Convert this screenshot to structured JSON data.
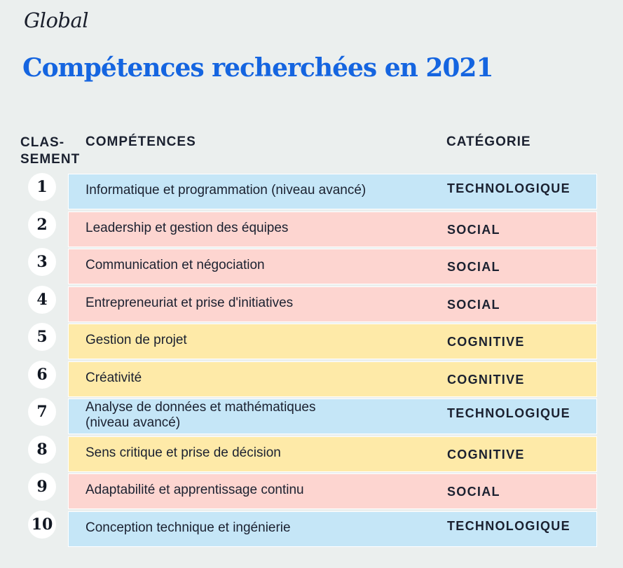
{
  "header": {
    "kicker": "Global",
    "title": "Compétences recherchées en 2021"
  },
  "columns": {
    "rank": "CLAS-\nSEMENT",
    "skill": "COMPÉTENCES",
    "category": "CATÉGORIE"
  },
  "colors": {
    "TECHNOLOGIQUE": "#c5e6f7",
    "SOCIAL": "#fdd5d0",
    "COGNITIVE": "#feeaa8",
    "title": "#1565e0",
    "background": "#ebefee"
  },
  "rows": [
    {
      "rank": "1",
      "skill": "Informatique et programmation (niveau avancé)",
      "category": "TECHNOLOGIQUE"
    },
    {
      "rank": "2",
      "skill": "Leadership et gestion des équipes",
      "category": "SOCIAL"
    },
    {
      "rank": "3",
      "skill": "Communication et négociation",
      "category": "SOCIAL"
    },
    {
      "rank": "4",
      "skill": "Entrepreneuriat et prise d'initiatives",
      "category": "SOCIAL"
    },
    {
      "rank": "5",
      "skill": "Gestion de projet",
      "category": "COGNITIVE"
    },
    {
      "rank": "6",
      "skill": "Créativité",
      "category": "COGNITIVE"
    },
    {
      "rank": "7",
      "skill": "Analyse de données et mathématiques\n(niveau avancé)",
      "category": "TECHNOLOGIQUE"
    },
    {
      "rank": "8",
      "skill": "Sens critique et prise de décision",
      "category": "COGNITIVE"
    },
    {
      "rank": "9",
      "skill": "Adaptabilité et apprentissage continu",
      "category": "SOCIAL"
    },
    {
      "rank": "10",
      "skill": "Conception technique et ingénierie",
      "category": "TECHNOLOGIQUE"
    }
  ]
}
